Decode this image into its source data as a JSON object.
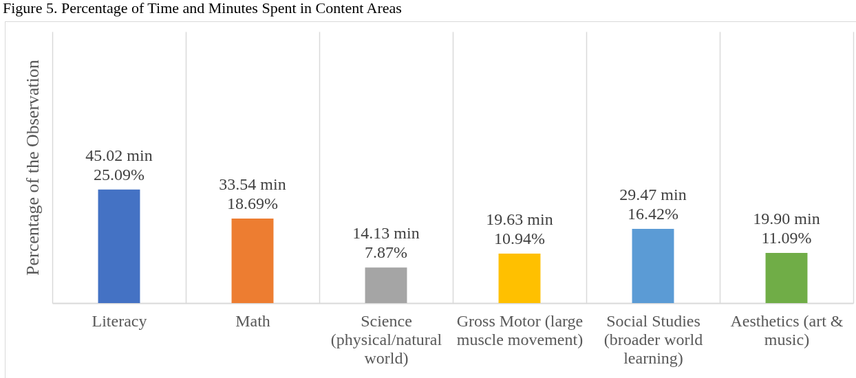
{
  "chart_data": {
    "type": "bar",
    "title": "Figure 5. Percentage of Time and Minutes Spent in Content Areas",
    "ylabel": "Percentage of the Observation",
    "categories": [
      "Literacy",
      "Math",
      "Science (physical/natural world)",
      "Gross Motor (large muscle movement)",
      "Social Studies (broader world learning)",
      "Aesthetics (art & music)"
    ],
    "values": [
      25.09,
      18.69,
      7.87,
      10.94,
      16.42,
      11.09
    ],
    "value_labels": [
      "45.02 min\n25.09%",
      "33.54 min\n18.69%",
      "14.13 min\n7.87%",
      "19.63 min\n10.94%",
      "29.47 min\n16.42%",
      "19.90 min\n11.09%"
    ],
    "colors": [
      "#4472c4",
      "#ed7d31",
      "#a5a5a5",
      "#ffc000",
      "#5b9bd5",
      "#70ad47"
    ],
    "ylim": [
      0,
      60
    ],
    "grid": "x",
    "tick_labels": "x"
  }
}
